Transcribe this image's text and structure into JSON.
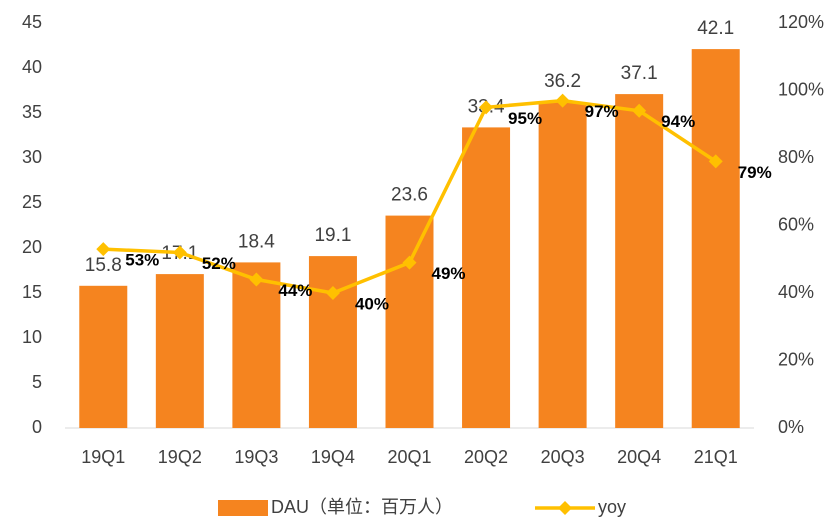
{
  "chart_data": {
    "type": "bar",
    "categories": [
      "19Q1",
      "19Q2",
      "19Q3",
      "19Q4",
      "20Q1",
      "20Q2",
      "20Q3",
      "20Q4",
      "21Q1"
    ],
    "series": [
      {
        "name": "DAU（单位：百万人）",
        "type": "bar",
        "color": "#F5841F",
        "values": [
          15.8,
          17.1,
          18.4,
          19.1,
          23.6,
          33.4,
          36.2,
          37.1,
          42.1
        ]
      },
      {
        "name": "yoy",
        "type": "line",
        "color": "#FFC000",
        "axis": "y2",
        "values": [
          53,
          52,
          44,
          40,
          49,
          95,
          97,
          94,
          79
        ],
        "value_labels": [
          "53%",
          "52%",
          "44%",
          "40%",
          "49%",
          "95%",
          "97%",
          "94%",
          "79%"
        ]
      }
    ],
    "ylim": [
      0,
      45
    ],
    "yticks": [
      0,
      5,
      10,
      15,
      20,
      25,
      30,
      35,
      40,
      45
    ],
    "y2lim": [
      0,
      120
    ],
    "y2ticks": [
      {
        "value": 0,
        "label": "0%"
      },
      {
        "value": 20,
        "label": "20%"
      },
      {
        "value": 40,
        "label": "40%"
      },
      {
        "value": 60,
        "label": "60%"
      },
      {
        "value": 80,
        "label": "80%"
      },
      {
        "value": 100,
        "label": "100%"
      },
      {
        "value": 120,
        "label": "120%"
      }
    ],
    "legend": "bottom"
  }
}
